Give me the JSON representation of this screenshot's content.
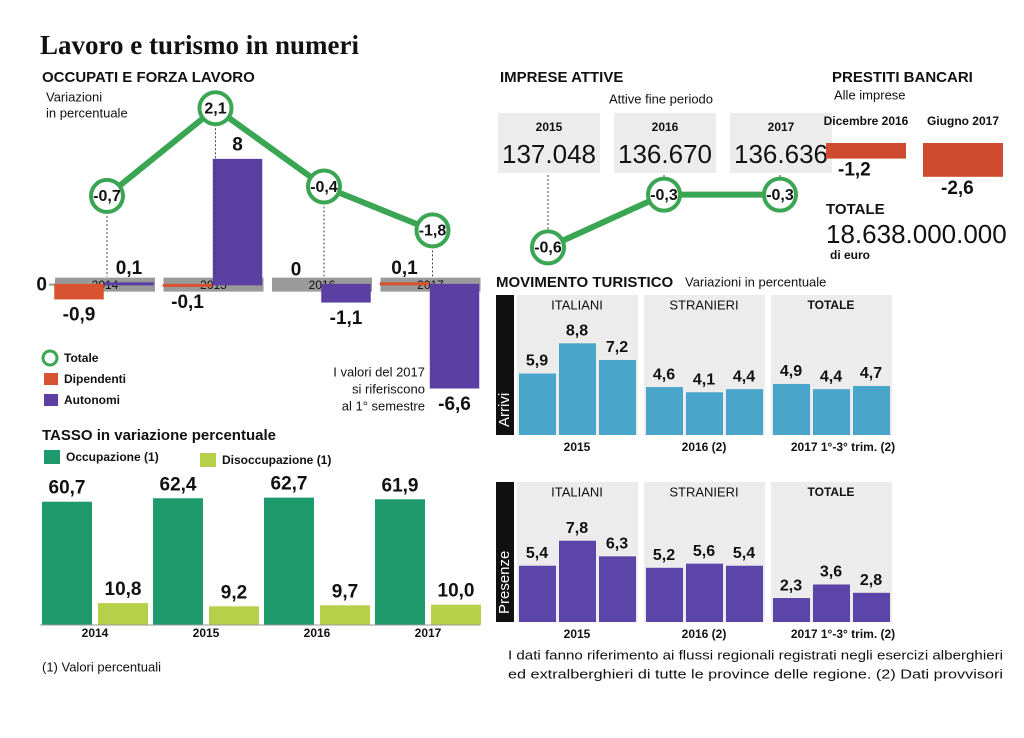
{
  "title": "Lavoro e turismo in numeri",
  "chart_data": [
    {
      "type": "combo",
      "title": "OCCUPATI E FORZA LAVORO",
      "subtitle": [
        "Variazioni",
        "in percentuale"
      ],
      "categories": [
        "2014",
        "2015",
        "2016",
        "2017"
      ],
      "series": [
        {
          "name": "Totale",
          "kind": "line",
          "axis": "y2",
          "color": "#3aa553",
          "values": [
            -0.7,
            2.1,
            -0.4,
            -1.8
          ],
          "value_labels": [
            "-0,7",
            "2,1",
            "-0,4",
            "-1,8"
          ]
        },
        {
          "name": "Dipendenti",
          "kind": "bar",
          "color": "#d8532f",
          "values": [
            -0.9,
            -0.1,
            0,
            0.1
          ],
          "value_labels": [
            "-0,9",
            "-0,1",
            "0",
            "0,1"
          ]
        },
        {
          "name": "Autonomi",
          "kind": "bar",
          "color": "#5b3fa3",
          "values": [
            0.1,
            8,
            -1.1,
            -6.6
          ],
          "value_labels": [
            "0,1",
            "8",
            "-1,1",
            "-6,6"
          ]
        }
      ],
      "ylim": [
        -7,
        9
      ],
      "yticks": [
        0
      ],
      "y2lim": [
        -3,
        3
      ],
      "annotation": [
        "I valori del 2017",
        "si riferiscono",
        "al 1° semestre"
      ]
    },
    {
      "type": "bar",
      "title": "TASSO in variazione percentuale",
      "categories": [
        "2014",
        "2015",
        "2016",
        "2017"
      ],
      "series": [
        {
          "name": "Occupazione (1)",
          "color": "#1f9a6c",
          "values": [
            60.7,
            62.4,
            62.7,
            61.9
          ],
          "value_labels": [
            "60,7",
            "62,4",
            "62,7",
            "61,9"
          ]
        },
        {
          "name": "Disoccupazione (1)",
          "color": "#b7d04a",
          "values": [
            10.8,
            9.2,
            9.7,
            10.0
          ],
          "value_labels": [
            "10,8",
            "9,2",
            "9,7",
            "10,0"
          ]
        }
      ],
      "ylim": [
        0,
        64
      ],
      "note": "(1) Valori percentuali"
    },
    {
      "type": "line",
      "title": "IMPRESE ATTIVE",
      "subtitle": "Attive fine periodo",
      "categories": [
        "2015",
        "2016",
        "2017"
      ],
      "totals": [
        137048,
        136670,
        136636
      ],
      "totals_labels": [
        "137.048",
        "136.670",
        "136.636"
      ],
      "values": [
        -0.6,
        -0.3,
        -0.3
      ],
      "value_labels": [
        "-0,6",
        "-0,3",
        "-0,3"
      ],
      "color": "#3aa553",
      "ylim": [
        -0.7,
        -0.2
      ]
    },
    {
      "type": "bar",
      "title": "PRESTITI BANCARI",
      "subtitle": "Alle imprese",
      "categories": [
        "Dicembre 2016",
        "Giugno 2017"
      ],
      "values": [
        -1.2,
        -2.6
      ],
      "value_labels": [
        "-1,2",
        "-2,6"
      ],
      "color": "#cf4b30",
      "ylim": [
        -3,
        0
      ],
      "total_title": "TOTALE",
      "total": 18638000000,
      "total_label": "18.638.000.000",
      "total_unit": "di euro"
    },
    {
      "type": "grouped-bar",
      "title": "MOVIMENTO TURISTICO",
      "subtitle": "Variazioni in percentuale",
      "panel": "Arrivi",
      "categories": [
        "2015",
        "2016 (2)",
        "2017 1°-3° trim. (2)"
      ],
      "color": "#4aa5cb",
      "series": [
        {
          "name": "ITALIANI",
          "values": [
            5.9,
            8.8,
            7.2
          ],
          "value_labels": [
            "5,9",
            "8,8",
            "7,2"
          ]
        },
        {
          "name": "STRANIERI",
          "values": [
            4.6,
            4.1,
            4.4
          ],
          "value_labels": [
            "4,6",
            "4,1",
            "4,4"
          ]
        },
        {
          "name": "TOTALE",
          "values": [
            4.9,
            4.4,
            4.7
          ],
          "value_labels": [
            "4,9",
            "4,4",
            "4,7"
          ]
        }
      ],
      "ylim": [
        0,
        9.5
      ]
    },
    {
      "type": "grouped-bar",
      "panel": "Presenze",
      "categories": [
        "2015",
        "2016 (2)",
        "2017 1°-3° trim. (2)"
      ],
      "color": "#5c45a8",
      "series": [
        {
          "name": "ITALIANI",
          "values": [
            5.4,
            7.8,
            6.3
          ],
          "value_labels": [
            "5,4",
            "7,8",
            "6,3"
          ]
        },
        {
          "name": "STRANIERI",
          "values": [
            5.2,
            5.6,
            5.4
          ],
          "value_labels": [
            "5,2",
            "5,6",
            "5,4"
          ]
        },
        {
          "name": "TOTALE",
          "values": [
            2.3,
            3.6,
            2.8
          ],
          "value_labels": [
            "2,3",
            "3,6",
            "2,8"
          ]
        }
      ],
      "ylim": [
        0,
        9.5
      ],
      "note": [
        "I dati fanno riferimento ai flussi regionali registrati negli esercizi alberghieri",
        "ed extralberghieri di tutte le province delle regione. (2) Dati provvisori"
      ]
    }
  ]
}
